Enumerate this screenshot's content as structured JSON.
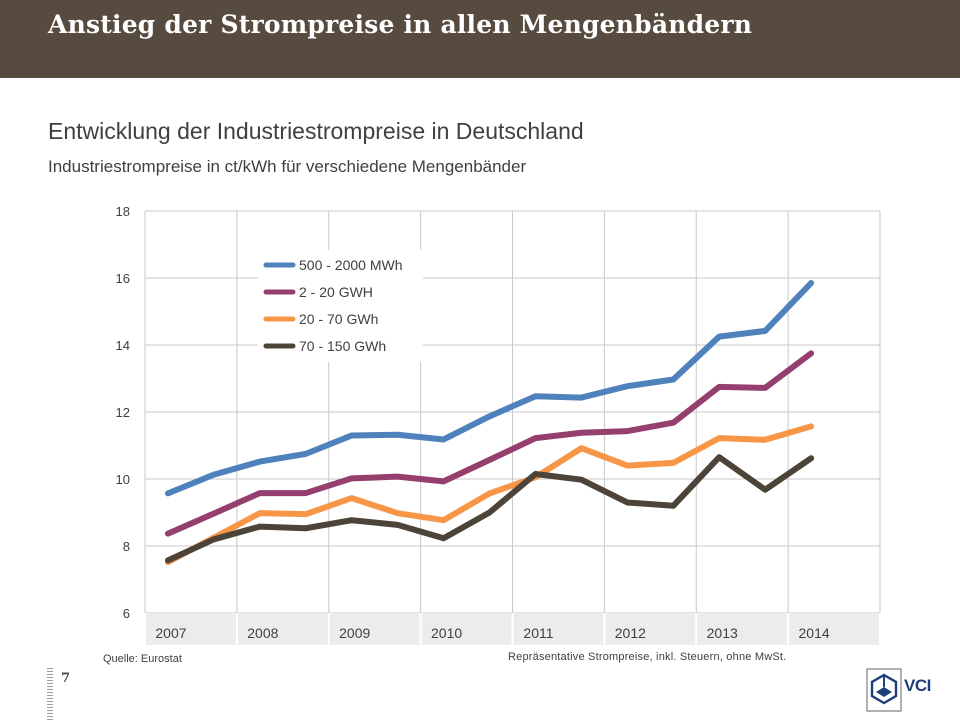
{
  "header": {
    "title": "Anstieg der Strompreise in allen Mengenbändern"
  },
  "chart_title": "Entwicklung der Industriestrompreise in Deutschland",
  "chart_subtitle": "Industriestrompreise in ct/kWh für verschiedene Mengenbänder",
  "chart_data": {
    "type": "line",
    "x": [
      2007.0,
      2007.5,
      2008.0,
      2008.5,
      2009.0,
      2009.5,
      2010.0,
      2010.5,
      2011.0,
      2011.5,
      2012.0,
      2012.5,
      2013.0,
      2013.5,
      2014.0
    ],
    "x_tick_labels": [
      "2007",
      "2008",
      "2009",
      "2010",
      "2011",
      "2012",
      "2013",
      "2014"
    ],
    "ylim": [
      6,
      18
    ],
    "y_ticks": [
      6,
      8,
      10,
      12,
      14,
      16,
      18
    ],
    "grid": true,
    "legend_position": "top-left",
    "series": [
      {
        "name": "500 - 2000 MWh",
        "color": "#4f81bd",
        "values": [
          9.57,
          10.13,
          10.52,
          10.75,
          11.3,
          11.32,
          11.18,
          11.87,
          12.47,
          12.43,
          12.77,
          12.97,
          14.25,
          14.42,
          15.85
        ]
      },
      {
        "name": "2 - 20 GWH",
        "color": "#953f6e",
        "values": [
          8.37,
          8.97,
          9.58,
          9.58,
          10.02,
          10.07,
          9.93,
          10.57,
          11.22,
          11.38,
          11.43,
          11.68,
          12.75,
          12.72,
          13.75
        ]
      },
      {
        "name": "20 - 70 GWh",
        "color": "#f79646",
        "values": [
          7.52,
          8.25,
          8.98,
          8.95,
          9.43,
          8.98,
          8.77,
          9.57,
          10.05,
          10.92,
          10.4,
          10.48,
          11.22,
          11.17,
          11.57
        ]
      },
      {
        "name": "70 - 150 GWh",
        "color": "#4d4439",
        "values": [
          7.57,
          8.2,
          8.58,
          8.53,
          8.77,
          8.63,
          8.23,
          9.0,
          10.15,
          9.98,
          9.3,
          9.2,
          10.65,
          9.68,
          10.62
        ]
      }
    ]
  },
  "footer": {
    "source": "Quelle: Eurostat",
    "note": "Repräsentative Strompreise, inkl. Steuern, ohne MwSt.",
    "page_number": "7",
    "logo_text": "VCI"
  }
}
